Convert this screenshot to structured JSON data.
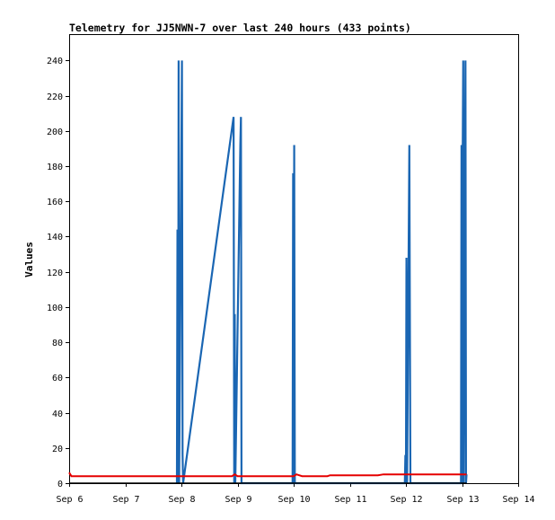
{
  "chart_data": {
    "type": "line",
    "title": "Telemetry for JJ5NWN-7 over last 240 hours (433 points)",
    "ylabel": "Values",
    "xlabel": "",
    "ylim": [
      0,
      255
    ],
    "x_tick_labels": [
      "Sep 6",
      "Sep 7",
      "Sep 8",
      "Sep 9",
      "Sep 10",
      "Sep 11",
      "Sep 12",
      "Sep 13",
      "Sep 14"
    ],
    "y_ticks": [
      0,
      20,
      40,
      60,
      80,
      100,
      120,
      140,
      160,
      180,
      200,
      220,
      240
    ],
    "grid": false,
    "x_unit": "days since Sep 6 00:00",
    "xlim": [
      0,
      8
    ],
    "series": [
      {
        "color": "#1a66b3",
        "points": [
          [
            1.92,
            0
          ],
          [
            1.93,
            144
          ],
          [
            1.94,
            0
          ],
          [
            1.95,
            240
          ],
          [
            1.96,
            0
          ],
          [
            2.01,
            240
          ],
          [
            2.02,
            16
          ],
          [
            2.03,
            0
          ],
          [
            2.93,
            208
          ],
          [
            2.94,
            0
          ],
          [
            2.95,
            96
          ],
          [
            2.96,
            0
          ],
          [
            3.05,
            192
          ],
          [
            3.06,
            208
          ],
          [
            3.07,
            0
          ],
          [
            3.98,
            0
          ],
          [
            3.99,
            176
          ],
          [
            4.0,
            0
          ],
          [
            4.01,
            192
          ],
          [
            4.02,
            0
          ],
          [
            5.98,
            0
          ],
          [
            5.99,
            16
          ],
          [
            6.0,
            0
          ],
          [
            6.01,
            128
          ],
          [
            6.02,
            0
          ],
          [
            6.06,
            192
          ],
          [
            6.07,
            96
          ],
          [
            6.08,
            0
          ],
          [
            6.98,
            0
          ],
          [
            6.99,
            192
          ],
          [
            7.0,
            0
          ],
          [
            7.01,
            176
          ],
          [
            7.02,
            240
          ],
          [
            7.03,
            0
          ],
          [
            7.06,
            240
          ],
          [
            7.07,
            0
          ],
          [
            7.08,
            5
          ]
        ]
      },
      {
        "color": "#e60000",
        "points": [
          [
            0.0,
            6
          ],
          [
            0.04,
            4
          ],
          [
            1.5,
            4
          ],
          [
            2.0,
            4
          ],
          [
            2.9,
            4
          ],
          [
            2.95,
            5
          ],
          [
            3.0,
            4
          ],
          [
            3.5,
            4
          ],
          [
            4.0,
            4
          ],
          [
            4.05,
            5
          ],
          [
            4.15,
            4
          ],
          [
            4.6,
            4
          ],
          [
            4.65,
            4.5
          ],
          [
            5.5,
            4.5
          ],
          [
            5.6,
            5
          ],
          [
            6.0,
            5
          ],
          [
            6.5,
            5
          ],
          [
            7.08,
            5
          ]
        ]
      },
      {
        "color": "#000000",
        "points": [
          [
            0.0,
            0
          ],
          [
            7.08,
            0
          ]
        ]
      }
    ]
  }
}
